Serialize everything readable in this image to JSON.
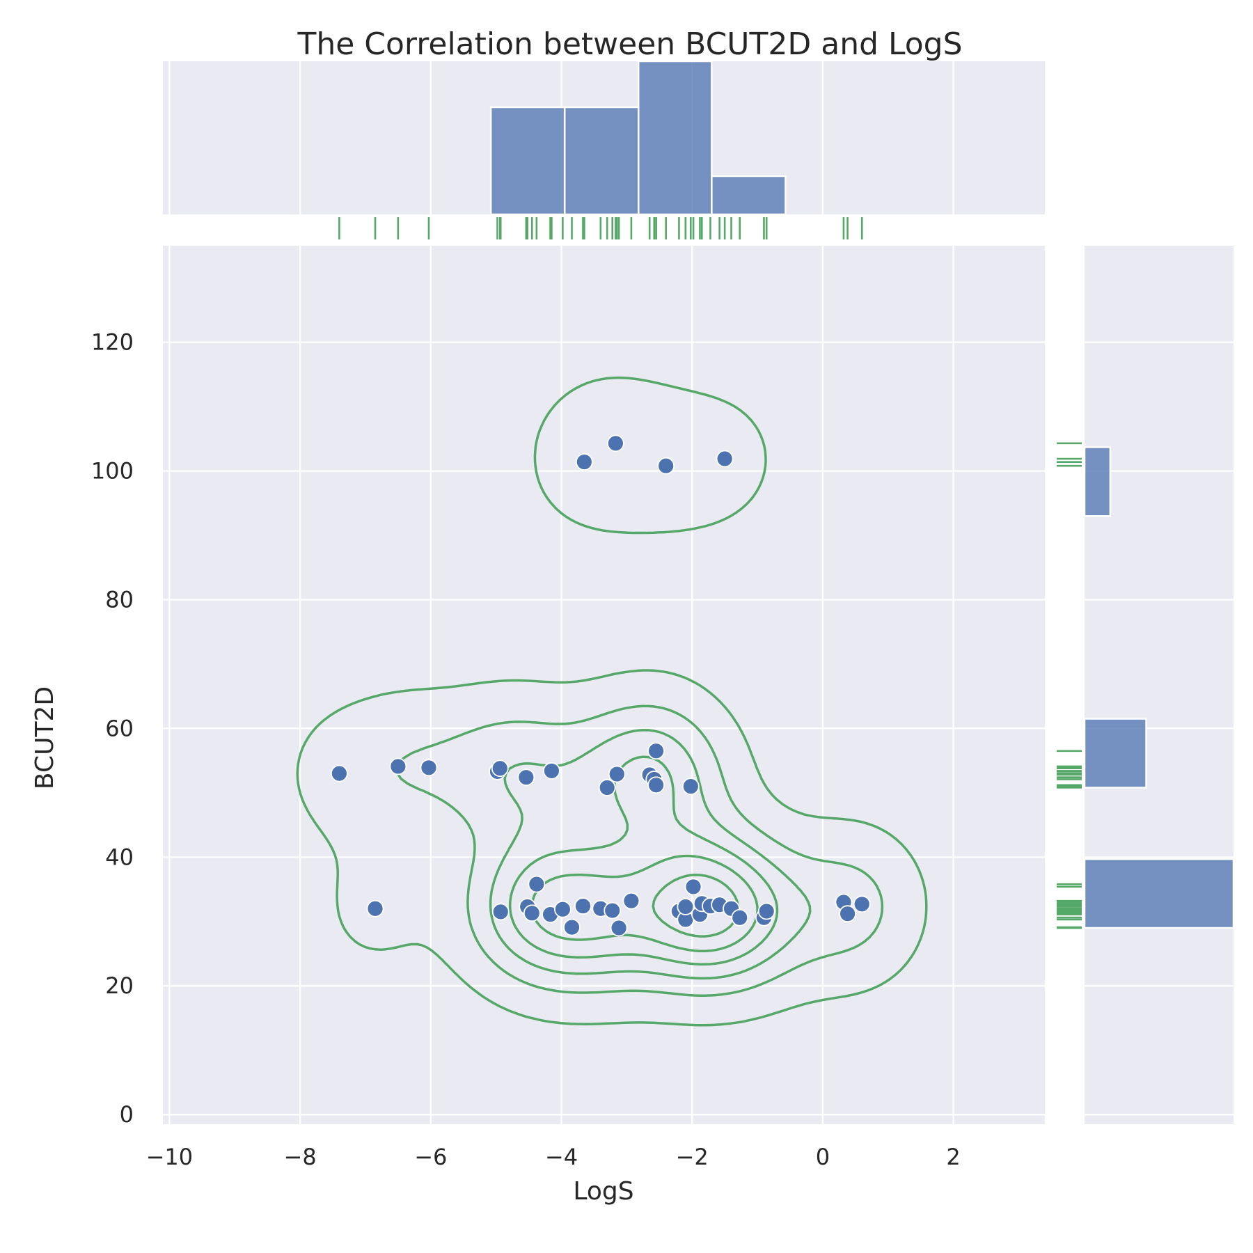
{
  "chart_data": {
    "type": "scatter",
    "title": "The Correlation between BCUT2D and LogS",
    "xlabel": "LogS",
    "ylabel": "BCUT2D",
    "xlim": [
      -10.1,
      3.4
    ],
    "ylim": [
      -1.5,
      135
    ],
    "xticks": [
      -10,
      -8,
      -6,
      -4,
      -2,
      0,
      2
    ],
    "xtick_labels": [
      "−10",
      "−8",
      "−6",
      "−4",
      "−2",
      "0",
      "2"
    ],
    "yticks": [
      0,
      20,
      40,
      60,
      80,
      100,
      120
    ],
    "ytick_labels": [
      "0",
      "20",
      "40",
      "60",
      "80",
      "100",
      "120"
    ],
    "grid": true,
    "colors": {
      "points": "#4c72b0",
      "kde": "#55a868",
      "hist": "#4c72b0",
      "rug": "#55a868",
      "panel": "#eaeaf2"
    },
    "points": [
      [
        -7.4,
        53.0
      ],
      [
        -6.85,
        32.0
      ],
      [
        -6.5,
        54.1
      ],
      [
        -6.03,
        53.9
      ],
      [
        -4.98,
        53.3
      ],
      [
        -4.94,
        53.8
      ],
      [
        -4.54,
        52.4
      ],
      [
        -4.15,
        53.4
      ],
      [
        -3.3,
        50.8
      ],
      [
        -3.15,
        52.9
      ],
      [
        -2.65,
        52.8
      ],
      [
        -2.58,
        52.1
      ],
      [
        -2.55,
        51.2
      ],
      [
        -2.02,
        51.0
      ],
      [
        -2.55,
        56.5
      ],
      [
        -4.93,
        31.5
      ],
      [
        -4.52,
        32.3
      ],
      [
        -4.45,
        31.3
      ],
      [
        -4.38,
        35.8
      ],
      [
        -4.17,
        31.1
      ],
      [
        -3.98,
        31.9
      ],
      [
        -3.84,
        29.1
      ],
      [
        -3.67,
        32.4
      ],
      [
        -3.4,
        32.0
      ],
      [
        -3.22,
        31.7
      ],
      [
        -3.12,
        29.0
      ],
      [
        -2.93,
        33.2
      ],
      [
        -2.2,
        31.6
      ],
      [
        -2.1,
        30.3
      ],
      [
        -2.1,
        32.3
      ],
      [
        -1.98,
        35.4
      ],
      [
        -1.88,
        31.1
      ],
      [
        -1.85,
        32.8
      ],
      [
        -1.72,
        32.4
      ],
      [
        -1.58,
        32.6
      ],
      [
        -1.4,
        32.0
      ],
      [
        -1.27,
        30.6
      ],
      [
        -0.9,
        30.6
      ],
      [
        -0.86,
        31.6
      ],
      [
        0.32,
        33.0
      ],
      [
        0.38,
        31.2
      ],
      [
        0.6,
        32.7
      ],
      [
        -3.65,
        101.4
      ],
      [
        -3.17,
        104.3
      ],
      [
        -2.4,
        100.8
      ],
      [
        -1.5,
        101.9
      ]
    ],
    "x_hist": {
      "bins": [
        [
          -5.08,
          -3.95
        ],
        [
          -3.95,
          -2.82
        ],
        [
          -2.82,
          -1.7
        ],
        [
          -1.7,
          -0.57
        ]
      ],
      "counts": [
        14,
        14,
        20,
        5
      ]
    },
    "y_hist": {
      "bins": [
        [
          29.0,
          39.7
        ],
        [
          50.8,
          61.5
        ],
        [
          93.0,
          103.7
        ]
      ],
      "counts": [
        29,
        12,
        5
      ]
    },
    "kde_levels": 6
  }
}
